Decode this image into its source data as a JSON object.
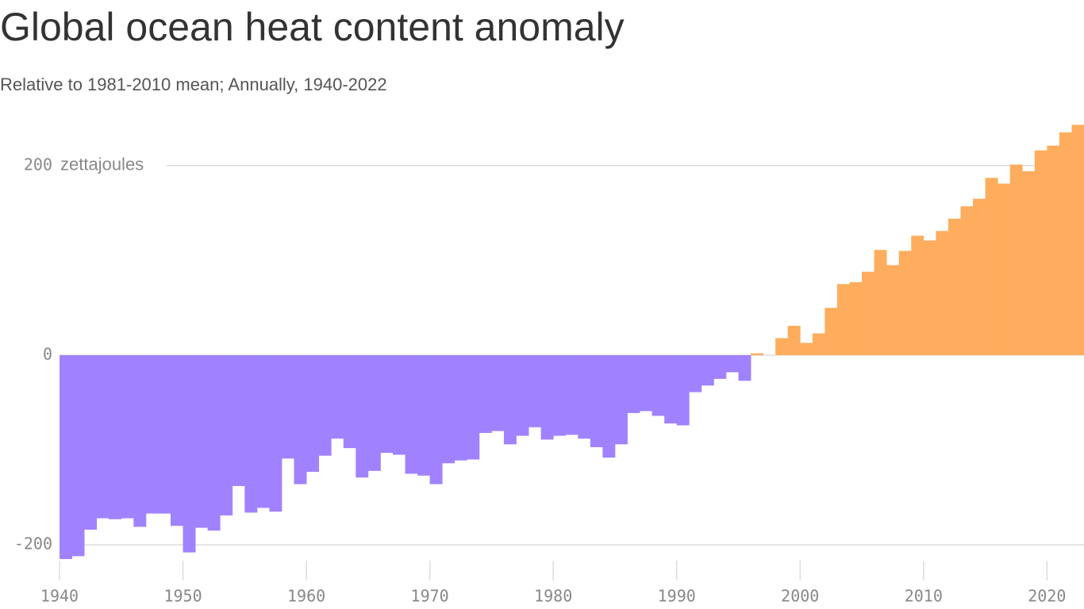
{
  "chart_data": {
    "type": "bar",
    "title": "Global ocean heat content anomaly",
    "subtitle": "Relative to 1981-2010 mean; Annually, 1940-2022",
    "y_unit": "zettajoules",
    "x": [
      1940,
      1941,
      1942,
      1943,
      1944,
      1945,
      1946,
      1947,
      1948,
      1949,
      1950,
      1951,
      1952,
      1953,
      1954,
      1955,
      1956,
      1957,
      1958,
      1959,
      1960,
      1961,
      1962,
      1963,
      1964,
      1965,
      1966,
      1967,
      1968,
      1969,
      1970,
      1971,
      1972,
      1973,
      1974,
      1975,
      1976,
      1977,
      1978,
      1979,
      1980,
      1981,
      1982,
      1983,
      1984,
      1985,
      1986,
      1987,
      1988,
      1989,
      1990,
      1991,
      1992,
      1993,
      1994,
      1995,
      1996,
      1997,
      1998,
      1999,
      2000,
      2001,
      2002,
      2003,
      2004,
      2005,
      2006,
      2007,
      2008,
      2009,
      2010,
      2011,
      2012,
      2013,
      2014,
      2015,
      2016,
      2017,
      2018,
      2019,
      2020,
      2021,
      2022
    ],
    "values": [
      -215,
      -212,
      -184,
      -172,
      -173,
      -172,
      -181,
      -167,
      -167,
      -180,
      -208,
      -182,
      -185,
      -169,
      -138,
      -166,
      -161,
      -165,
      -109,
      -136,
      -123,
      -106,
      -88,
      -98,
      -129,
      -122,
      -103,
      -105,
      -125,
      -127,
      -136,
      -114,
      -111,
      -110,
      -82,
      -80,
      -94,
      -85,
      -76,
      -89,
      -85,
      -84,
      -88,
      -97,
      -108,
      -94,
      -61,
      -59,
      -64,
      -72,
      -74,
      -39,
      -32,
      -25,
      -18,
      -27,
      2,
      0,
      18,
      31,
      13,
      23,
      50,
      75,
      77,
      88,
      111,
      95,
      110,
      126,
      121,
      131,
      144,
      157,
      165,
      187,
      181,
      201,
      194,
      216,
      221,
      235,
      243
    ],
    "color_positive": "#fdad5d",
    "color_negative": "#a182fe",
    "xlim": [
      1940,
      2023
    ],
    "ylim": [
      -220,
      250
    ],
    "xticks": [
      1940,
      1950,
      1960,
      1970,
      1980,
      1990,
      2000,
      2010,
      2020
    ],
    "yticks": [
      -200,
      0,
      200
    ],
    "grid": true
  }
}
